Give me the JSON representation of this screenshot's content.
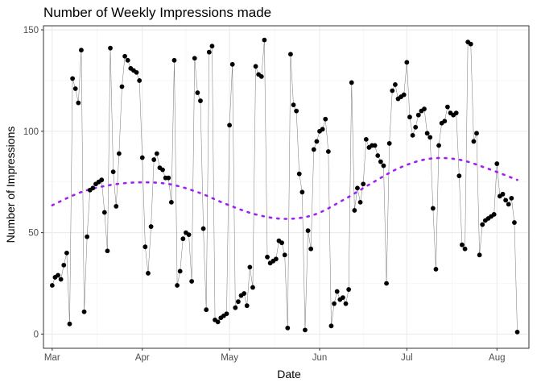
{
  "chart_data": {
    "type": "scatter",
    "title": "Number of Weekly Impressions made",
    "xlabel": "Date",
    "ylabel": "Number of Impressions",
    "x_ticks": [
      "Mar",
      "Apr",
      "May",
      "Jun",
      "Jul",
      "Aug"
    ],
    "x_tick_dates": [
      "2023-03-01",
      "2023-04-01",
      "2023-05-01",
      "2023-06-01",
      "2023-07-01",
      "2023-08-01"
    ],
    "xlim": [
      "2023-02-26",
      "2023-08-12"
    ],
    "y_ticks": [
      0,
      50,
      100,
      150
    ],
    "ylim": [
      -7,
      152
    ],
    "grid": true,
    "legend": "none",
    "colors": {
      "points": "#000000",
      "line": "#808080",
      "trend": "#a020f0"
    },
    "series": [
      {
        "type": "scatter+line",
        "x": [
          "2023-03-01",
          "2023-03-02",
          "2023-03-03",
          "2023-03-04",
          "2023-03-05",
          "2023-03-06",
          "2023-03-07",
          "2023-03-08",
          "2023-03-09",
          "2023-03-10",
          "2023-03-11",
          "2023-03-12",
          "2023-03-13",
          "2023-03-14",
          "2023-03-15",
          "2023-03-16",
          "2023-03-17",
          "2023-03-18",
          "2023-03-19",
          "2023-03-20",
          "2023-03-21",
          "2023-03-22",
          "2023-03-23",
          "2023-03-24",
          "2023-03-25",
          "2023-03-26",
          "2023-03-27",
          "2023-03-28",
          "2023-03-29",
          "2023-03-30",
          "2023-03-31",
          "2023-04-01",
          "2023-04-02",
          "2023-04-03",
          "2023-04-04",
          "2023-04-05",
          "2023-04-06",
          "2023-04-07",
          "2023-04-08",
          "2023-04-09",
          "2023-04-10",
          "2023-04-11",
          "2023-04-12",
          "2023-04-13",
          "2023-04-14",
          "2023-04-15",
          "2023-04-16",
          "2023-04-17",
          "2023-04-18",
          "2023-04-19",
          "2023-04-20",
          "2023-04-21",
          "2023-04-22",
          "2023-04-23",
          "2023-04-24",
          "2023-04-25",
          "2023-04-26",
          "2023-04-27",
          "2023-04-28",
          "2023-04-29",
          "2023-04-30",
          "2023-05-01",
          "2023-05-02",
          "2023-05-03",
          "2023-05-04",
          "2023-05-05",
          "2023-05-06",
          "2023-05-07",
          "2023-05-08",
          "2023-05-09",
          "2023-05-10",
          "2023-05-11",
          "2023-05-12",
          "2023-05-13",
          "2023-05-14",
          "2023-05-15",
          "2023-05-16",
          "2023-05-17",
          "2023-05-18",
          "2023-05-19",
          "2023-05-20",
          "2023-05-21",
          "2023-05-22",
          "2023-05-23",
          "2023-05-24",
          "2023-05-25",
          "2023-05-26",
          "2023-05-27",
          "2023-05-28",
          "2023-05-29",
          "2023-05-30",
          "2023-05-31",
          "2023-06-01",
          "2023-06-02",
          "2023-06-03",
          "2023-06-04",
          "2023-06-05",
          "2023-06-06",
          "2023-06-07",
          "2023-06-08",
          "2023-06-09",
          "2023-06-10",
          "2023-06-11",
          "2023-06-12",
          "2023-06-13",
          "2023-06-14",
          "2023-06-15",
          "2023-06-16",
          "2023-06-17",
          "2023-06-18",
          "2023-06-19",
          "2023-06-20",
          "2023-06-21",
          "2023-06-22",
          "2023-06-23",
          "2023-06-24",
          "2023-06-25",
          "2023-06-26",
          "2023-06-27",
          "2023-06-28",
          "2023-06-29",
          "2023-06-30",
          "2023-07-01",
          "2023-07-02",
          "2023-07-03",
          "2023-07-04",
          "2023-07-05",
          "2023-07-06",
          "2023-07-07",
          "2023-07-08",
          "2023-07-09",
          "2023-07-10",
          "2023-07-11",
          "2023-07-12",
          "2023-07-13",
          "2023-07-14",
          "2023-07-15",
          "2023-07-16",
          "2023-07-17",
          "2023-07-18",
          "2023-07-19",
          "2023-07-20",
          "2023-07-21",
          "2023-07-22",
          "2023-07-23",
          "2023-07-24",
          "2023-07-25",
          "2023-07-26",
          "2023-07-27",
          "2023-07-28",
          "2023-07-29",
          "2023-07-30",
          "2023-07-31",
          "2023-08-01",
          "2023-08-02",
          "2023-08-03",
          "2023-08-04",
          "2023-08-05",
          "2023-08-06",
          "2023-08-07",
          "2023-08-08"
        ],
        "y": [
          24,
          28,
          29,
          27,
          34,
          40,
          5,
          126,
          121,
          114,
          140,
          11,
          48,
          71,
          72,
          74,
          75,
          76,
          60,
          41,
          141,
          80,
          63,
          89,
          122,
          137,
          135,
          131,
          130,
          129,
          125,
          87,
          43,
          30,
          53,
          86,
          89,
          82,
          81,
          77,
          77,
          65,
          135,
          24,
          31,
          47,
          50,
          49,
          26,
          136,
          119,
          115,
          52,
          12,
          139,
          142,
          7,
          6,
          8,
          9,
          10,
          103,
          133,
          13,
          16,
          19,
          20,
          14,
          33,
          23,
          132,
          128,
          127,
          145,
          38,
          35,
          36,
          37,
          46,
          45,
          39,
          3,
          138,
          113,
          110,
          79,
          70,
          2,
          51,
          42,
          91,
          95,
          100,
          101,
          106,
          90,
          4,
          15,
          21,
          17,
          18,
          15,
          22,
          124,
          61,
          72,
          65,
          74,
          96,
          92,
          93,
          93,
          88,
          85,
          83,
          25,
          94,
          120,
          123,
          116,
          117,
          118,
          134,
          107,
          98,
          102,
          108,
          110,
          111,
          99,
          97,
          62,
          32,
          93,
          104,
          105,
          112,
          109,
          108,
          109,
          78,
          44,
          42,
          144,
          143,
          95,
          99,
          39,
          54,
          56,
          57,
          58,
          59,
          84,
          68,
          69,
          66,
          64,
          67,
          55,
          1
        ]
      },
      {
        "type": "trend",
        "x": [
          "2023-03-01",
          "2023-03-11",
          "2023-03-21",
          "2023-03-31",
          "2023-04-10",
          "2023-04-20",
          "2023-04-30",
          "2023-05-10",
          "2023-05-20",
          "2023-05-30",
          "2023-06-09",
          "2023-06-19",
          "2023-06-29",
          "2023-07-09",
          "2023-07-19",
          "2023-07-29",
          "2023-08-08"
        ],
        "y": [
          63.5,
          70,
          73.5,
          74.8,
          74,
          70,
          64,
          59,
          56.8,
          58.8,
          66,
          74.5,
          82.3,
          86.5,
          86,
          81.5,
          76
        ]
      }
    ]
  }
}
